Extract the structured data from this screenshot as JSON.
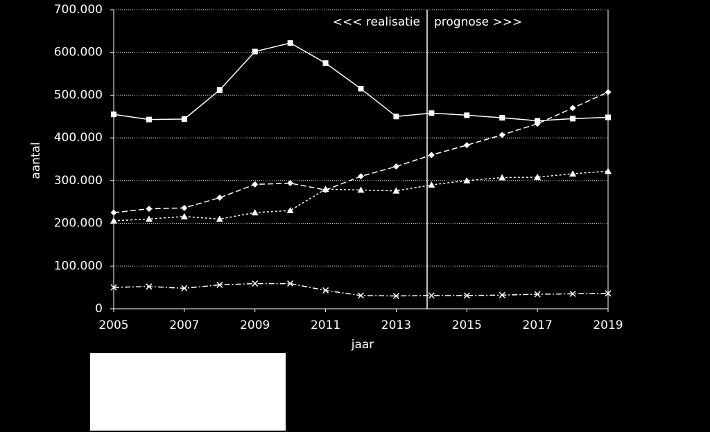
{
  "chart_data": {
    "type": "line",
    "x": [
      2005,
      2006,
      2007,
      2008,
      2009,
      2010,
      2011,
      2012,
      2013,
      2014,
      2015,
      2016,
      2017,
      2018,
      2019
    ],
    "series": [
      {
        "color": "#ffffff",
        "marker": "square",
        "dash": "solid",
        "values": [
          455000,
          443000,
          444000,
          512000,
          602000,
          622000,
          575000,
          515000,
          450000,
          458000,
          453000,
          447000,
          440000,
          445000,
          448000
        ]
      },
      {
        "color": "#ffffff",
        "marker": "diamond",
        "dash": "long",
        "values": [
          225000,
          234000,
          236000,
          260000,
          291000,
          294000,
          278000,
          310000,
          333000,
          360000,
          383000,
          407000,
          433000,
          470000,
          507000
        ]
      },
      {
        "color": "#ffffff",
        "marker": "triangle",
        "dash": "short",
        "values": [
          206000,
          210000,
          216000,
          210000,
          225000,
          230000,
          280000,
          278000,
          276000,
          290000,
          300000,
          307000,
          308000,
          316000,
          322000
        ]
      },
      {
        "color": "#ffffff",
        "marker": "x",
        "dash": "dashdot",
        "values": [
          50000,
          52000,
          48000,
          56000,
          59000,
          59000,
          43000,
          31000,
          30000,
          31000,
          31000,
          32000,
          34000,
          35000,
          36000
        ]
      }
    ],
    "xlim": [
      2005,
      2019
    ],
    "xticks": [
      2005,
      2007,
      2009,
      2011,
      2013,
      2015,
      2017,
      2019
    ],
    "ylim": [
      0,
      700000
    ],
    "yticks": [
      0,
      {
        "value": 100000,
        "label": "100.000"
      },
      {
        "value": 200000,
        "label": "200.000"
      },
      {
        "value": 300000,
        "label": "300.000"
      },
      {
        "value": 400000,
        "label": "400.000"
      },
      {
        "value": 500000,
        "label": "500.000"
      },
      {
        "value": 600000,
        "label": "600.000"
      },
      {
        "value": 700000,
        "label": "700.000"
      }
    ],
    "grid": true,
    "x_label": "jaar",
    "y_label": "aantal",
    "divider": 2013.875,
    "annotations": [
      "<<< realisatie",
      "prognose >>>"
    ]
  }
}
